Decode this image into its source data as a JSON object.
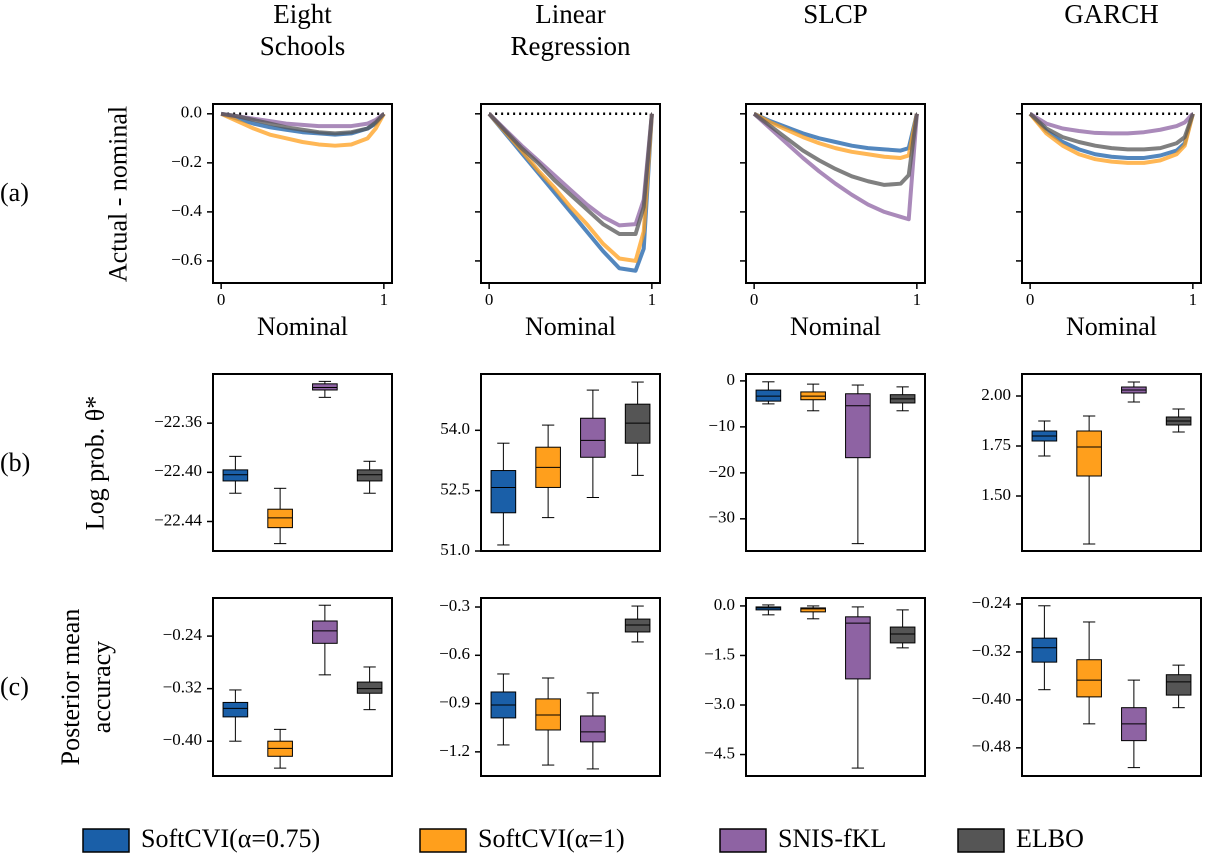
{
  "row_labels": [
    "(a)",
    "(b)",
    "(c)"
  ],
  "legend": {
    "entries": [
      {
        "name": "SoftCVI(α=0.75)",
        "color": "#1a5fa8"
      },
      {
        "name": "SoftCVI(α=1)",
        "color": "#ff9f1c"
      },
      {
        "name": "SNIS-fKL",
        "color": "#8e63a3"
      },
      {
        "name": "ELBO",
        "color": "#555555"
      }
    ]
  },
  "chart_data": [
    {
      "type": "line",
      "title": "Eight\nSchools",
      "ylabel": "Actual - nominal",
      "xlabel": "Nominal",
      "alpha": 0.75,
      "hline": 0,
      "xlim": [
        -0.05,
        1.05
      ],
      "ylim": [
        -0.69,
        0.04
      ],
      "xticks": [
        0,
        1
      ],
      "yticks": [
        {
          "value": 0,
          "label": "0.0"
        },
        {
          "value": -0.2,
          "label": "−0.2"
        },
        {
          "value": -0.4,
          "label": "−0.4"
        },
        {
          "value": -0.6,
          "label": "−0.6"
        }
      ],
      "x": [
        0,
        0.1,
        0.2,
        0.3,
        0.4,
        0.5,
        0.6,
        0.7,
        0.8,
        0.9,
        0.95,
        1
      ],
      "series": [
        {
          "values": [
            0,
            -0.02,
            -0.04,
            -0.055,
            -0.065,
            -0.075,
            -0.08,
            -0.085,
            -0.08,
            -0.06,
            -0.04,
            0
          ]
        },
        {
          "values": [
            0,
            -0.03,
            -0.06,
            -0.085,
            -0.1,
            -0.115,
            -0.125,
            -0.13,
            -0.125,
            -0.1,
            -0.06,
            0
          ]
        },
        {
          "values": [
            0,
            -0.01,
            -0.02,
            -0.03,
            -0.04,
            -0.045,
            -0.05,
            -0.05,
            -0.05,
            -0.04,
            -0.025,
            0
          ]
        },
        {
          "values": [
            0,
            -0.01,
            -0.025,
            -0.04,
            -0.055,
            -0.065,
            -0.075,
            -0.08,
            -0.075,
            -0.06,
            -0.035,
            0
          ]
        }
      ]
    },
    {
      "type": "line",
      "title": "Linear\nRegression",
      "xlabel": "Nominal",
      "alpha": 0.75,
      "hline": 0,
      "sharey": true,
      "xlim": [
        -0.05,
        1.05
      ],
      "ylim": [
        -0.69,
        0.04
      ],
      "xticks": [
        0,
        1
      ],
      "x": [
        0,
        0.1,
        0.2,
        0.3,
        0.4,
        0.5,
        0.6,
        0.7,
        0.8,
        0.9,
        0.95,
        1
      ],
      "series": [
        {
          "values": [
            0,
            -0.08,
            -0.16,
            -0.24,
            -0.32,
            -0.4,
            -0.48,
            -0.56,
            -0.63,
            -0.64,
            -0.55,
            0
          ]
        },
        {
          "values": [
            0,
            -0.075,
            -0.15,
            -0.23,
            -0.3,
            -0.38,
            -0.45,
            -0.53,
            -0.59,
            -0.6,
            -0.48,
            0
          ]
        },
        {
          "values": [
            0,
            -0.065,
            -0.13,
            -0.19,
            -0.25,
            -0.31,
            -0.37,
            -0.42,
            -0.455,
            -0.45,
            -0.35,
            0
          ]
        },
        {
          "values": [
            0,
            -0.07,
            -0.14,
            -0.2,
            -0.27,
            -0.33,
            -0.39,
            -0.45,
            -0.49,
            -0.49,
            -0.38,
            0
          ]
        }
      ]
    },
    {
      "type": "line",
      "title": "SLCP",
      "xlabel": "Nominal",
      "alpha": 0.75,
      "hline": 0,
      "sharey": true,
      "xlim": [
        -0.05,
        1.05
      ],
      "ylim": [
        -0.69,
        0.04
      ],
      "xticks": [
        0,
        1
      ],
      "x": [
        0,
        0.1,
        0.2,
        0.3,
        0.4,
        0.5,
        0.6,
        0.7,
        0.8,
        0.9,
        0.95,
        1
      ],
      "series": [
        {
          "values": [
            0,
            -0.03,
            -0.055,
            -0.08,
            -0.1,
            -0.115,
            -0.13,
            -0.14,
            -0.145,
            -0.15,
            -0.14,
            0
          ]
        },
        {
          "values": [
            0,
            -0.035,
            -0.065,
            -0.095,
            -0.12,
            -0.14,
            -0.155,
            -0.165,
            -0.175,
            -0.18,
            -0.17,
            0
          ]
        },
        {
          "values": [
            0,
            -0.06,
            -0.12,
            -0.18,
            -0.235,
            -0.285,
            -0.33,
            -0.37,
            -0.4,
            -0.42,
            -0.43,
            0
          ]
        },
        {
          "values": [
            0,
            -0.05,
            -0.1,
            -0.15,
            -0.19,
            -0.225,
            -0.255,
            -0.275,
            -0.29,
            -0.285,
            -0.25,
            0
          ]
        }
      ]
    },
    {
      "type": "line",
      "title": "GARCH",
      "xlabel": "Nominal",
      "alpha": 0.75,
      "hline": 0,
      "sharey": true,
      "xlim": [
        -0.05,
        1.05
      ],
      "ylim": [
        -0.69,
        0.04
      ],
      "xticks": [
        0,
        1
      ],
      "x": [
        0,
        0.1,
        0.2,
        0.3,
        0.4,
        0.5,
        0.6,
        0.7,
        0.8,
        0.9,
        0.95,
        1
      ],
      "series": [
        {
          "values": [
            0,
            -0.07,
            -0.115,
            -0.145,
            -0.165,
            -0.175,
            -0.18,
            -0.18,
            -0.17,
            -0.15,
            -0.12,
            0
          ]
        },
        {
          "values": [
            0,
            -0.08,
            -0.13,
            -0.165,
            -0.185,
            -0.195,
            -0.2,
            -0.2,
            -0.19,
            -0.165,
            -0.13,
            0
          ]
        },
        {
          "values": [
            0,
            -0.04,
            -0.06,
            -0.07,
            -0.078,
            -0.08,
            -0.08,
            -0.075,
            -0.065,
            -0.05,
            -0.035,
            0
          ]
        },
        {
          "values": [
            0,
            -0.06,
            -0.095,
            -0.115,
            -0.13,
            -0.14,
            -0.145,
            -0.145,
            -0.14,
            -0.12,
            -0.095,
            0
          ]
        }
      ]
    },
    {
      "type": "box",
      "ylabel": "Log prob. θ*",
      "ylim": [
        -22.464,
        -22.32
      ],
      "yticks": [
        {
          "value": -22.36,
          "label": "−22.36"
        },
        {
          "value": -22.4,
          "label": "−22.40"
        },
        {
          "value": -22.44,
          "label": "−22.44"
        }
      ],
      "boxes": [
        {
          "whislo": -22.417,
          "q1": -22.407,
          "med": -22.402,
          "q3": -22.398,
          "whishi": -22.387
        },
        {
          "whislo": -22.458,
          "q1": -22.445,
          "med": -22.437,
          "q3": -22.43,
          "whishi": -22.413
        },
        {
          "whislo": -22.339,
          "q1": -22.333,
          "med": -22.331,
          "q3": -22.328,
          "whishi": -22.326
        },
        {
          "whislo": -22.417,
          "q1": -22.407,
          "med": -22.402,
          "q3": -22.398,
          "whishi": -22.391
        }
      ]
    },
    {
      "type": "box",
      "ylim": [
        51.0,
        55.4
      ],
      "yticks": [
        {
          "value": 54,
          "label": "54.0"
        },
        {
          "value": 52.5,
          "label": "52.5"
        },
        {
          "value": 51,
          "label": "51.0"
        }
      ],
      "boxes": [
        {
          "whislo": 51.15,
          "q1": 51.95,
          "med": 52.58,
          "q3": 53.0,
          "whishi": 53.68
        },
        {
          "whislo": 51.83,
          "q1": 52.58,
          "med": 53.08,
          "q3": 53.58,
          "whishi": 54.13
        },
        {
          "whislo": 52.33,
          "q1": 53.33,
          "med": 53.75,
          "q3": 54.3,
          "whishi": 55.0
        },
        {
          "whislo": 52.88,
          "q1": 53.68,
          "med": 54.18,
          "q3": 54.65,
          "whishi": 55.2
        }
      ]
    },
    {
      "type": "box",
      "ylim": [
        -37,
        1.5
      ],
      "yticks": [
        0,
        {
          "value": -10,
          "label": "−10"
        },
        {
          "value": -20,
          "label": "−20"
        },
        {
          "value": -30,
          "label": "−30"
        }
      ],
      "boxes": [
        {
          "whislo": -5.0,
          "q1": -4.4,
          "med": -3.3,
          "q3": -2.0,
          "whishi": -0.2
        },
        {
          "whislo": -6.5,
          "q1": -4.1,
          "med": -3.3,
          "q3": -2.4,
          "whishi": -0.7
        },
        {
          "whislo": -35.4,
          "q1": -16.7,
          "med": -5.4,
          "q3": -2.8,
          "whishi": -0.9
        },
        {
          "whislo": -6.5,
          "q1": -4.8,
          "med": -3.9,
          "q3": -3.0,
          "whishi": -1.3
        }
      ]
    },
    {
      "type": "box",
      "ylim": [
        1.225,
        2.11
      ],
      "yticks": [
        {
          "value": 2,
          "label": "2.00"
        },
        {
          "value": 1.75,
          "label": "1.75"
        },
        {
          "value": 1.5,
          "label": "1.50"
        }
      ],
      "boxes": [
        {
          "whislo": 1.7,
          "q1": 1.775,
          "med": 1.8,
          "q3": 1.825,
          "whishi": 1.875
        },
        {
          "whislo": 1.26,
          "q1": 1.6,
          "med": 1.745,
          "q3": 1.825,
          "whishi": 1.9
        },
        {
          "whislo": 1.97,
          "q1": 2.015,
          "med": 2.03,
          "q3": 2.045,
          "whishi": 2.07
        },
        {
          "whislo": 1.82,
          "q1": 1.855,
          "med": 1.875,
          "q3": 1.895,
          "whishi": 1.935
        }
      ]
    },
    {
      "type": "box",
      "ylabel": "Posterior mean\naccuracy",
      "ylim": [
        -0.453,
        -0.182
      ],
      "yticks": [
        {
          "value": -0.24,
          "label": "−0.24"
        },
        {
          "value": -0.32,
          "label": "−0.32"
        },
        {
          "value": -0.4,
          "label": "−0.40"
        }
      ],
      "boxes": [
        {
          "whislo": -0.4,
          "q1": -0.363,
          "med": -0.35,
          "q3": -0.341,
          "whishi": -0.322
        },
        {
          "whislo": -0.441,
          "q1": -0.423,
          "med": -0.411,
          "q3": -0.4,
          "whishi": -0.382
        },
        {
          "whislo": -0.299,
          "q1": -0.251,
          "med": -0.232,
          "q3": -0.217,
          "whishi": -0.193
        },
        {
          "whislo": -0.352,
          "q1": -0.327,
          "med": -0.32,
          "q3": -0.31,
          "whishi": -0.287
        }
      ]
    },
    {
      "type": "box",
      "ylim": [
        -1.35,
        -0.244
      ],
      "yticks": [
        {
          "value": -0.3,
          "label": "−0.3"
        },
        {
          "value": -0.6,
          "label": "−0.6"
        },
        {
          "value": -0.9,
          "label": "−0.9"
        },
        {
          "value": -1.2,
          "label": "−1.2"
        }
      ],
      "boxes": [
        {
          "whislo": -1.157,
          "q1": -0.989,
          "med": -0.909,
          "q3": -0.828,
          "whishi": -0.716
        },
        {
          "whislo": -1.282,
          "q1": -1.064,
          "med": -0.971,
          "q3": -0.871,
          "whishi": -0.741
        },
        {
          "whislo": -1.306,
          "q1": -1.138,
          "med": -1.076,
          "q3": -0.977,
          "whishi": -0.834
        },
        {
          "whislo": -0.517,
          "q1": -0.455,
          "med": -0.412,
          "q3": -0.375,
          "whishi": -0.294
        }
      ]
    },
    {
      "type": "box",
      "ylim": [
        -5.15,
        0.24
      ],
      "yticks": [
        {
          "value": 0,
          "label": "0.0"
        },
        {
          "value": -1.5,
          "label": "−1.5"
        },
        {
          "value": -3,
          "label": "−3.0"
        },
        {
          "value": -4.5,
          "label": "−4.5"
        }
      ],
      "boxes": [
        {
          "whislo": -0.27,
          "q1": -0.12,
          "med": -0.06,
          "q3": -0.03,
          "whishi": 0.03
        },
        {
          "whislo": -0.39,
          "q1": -0.18,
          "med": -0.09,
          "q3": -0.06,
          "whishi": 0
        },
        {
          "whislo": -4.91,
          "q1": -2.21,
          "med": -0.52,
          "q3": -0.33,
          "whishi": -0.03
        },
        {
          "whislo": -1.27,
          "q1": -1.12,
          "med": -0.85,
          "q3": -0.64,
          "whishi": -0.12
        }
      ]
    },
    {
      "type": "box",
      "ylim": [
        -0.527,
        -0.23
      ],
      "yticks": [
        {
          "value": -0.24,
          "label": "−0.24"
        },
        {
          "value": -0.32,
          "label": "−0.32"
        },
        {
          "value": -0.4,
          "label": "−0.40"
        },
        {
          "value": -0.48,
          "label": "−0.48"
        }
      ],
      "boxes": [
        {
          "whislo": -0.383,
          "q1": -0.337,
          "med": -0.313,
          "q3": -0.297,
          "whishi": -0.243
        },
        {
          "whislo": -0.44,
          "q1": -0.395,
          "med": -0.367,
          "q3": -0.333,
          "whishi": -0.27
        },
        {
          "whislo": -0.513,
          "q1": -0.468,
          "med": -0.44,
          "q3": -0.413,
          "whishi": -0.367
        },
        {
          "whislo": -0.413,
          "q1": -0.392,
          "med": -0.37,
          "q3": -0.358,
          "whishi": -0.342
        }
      ]
    }
  ]
}
